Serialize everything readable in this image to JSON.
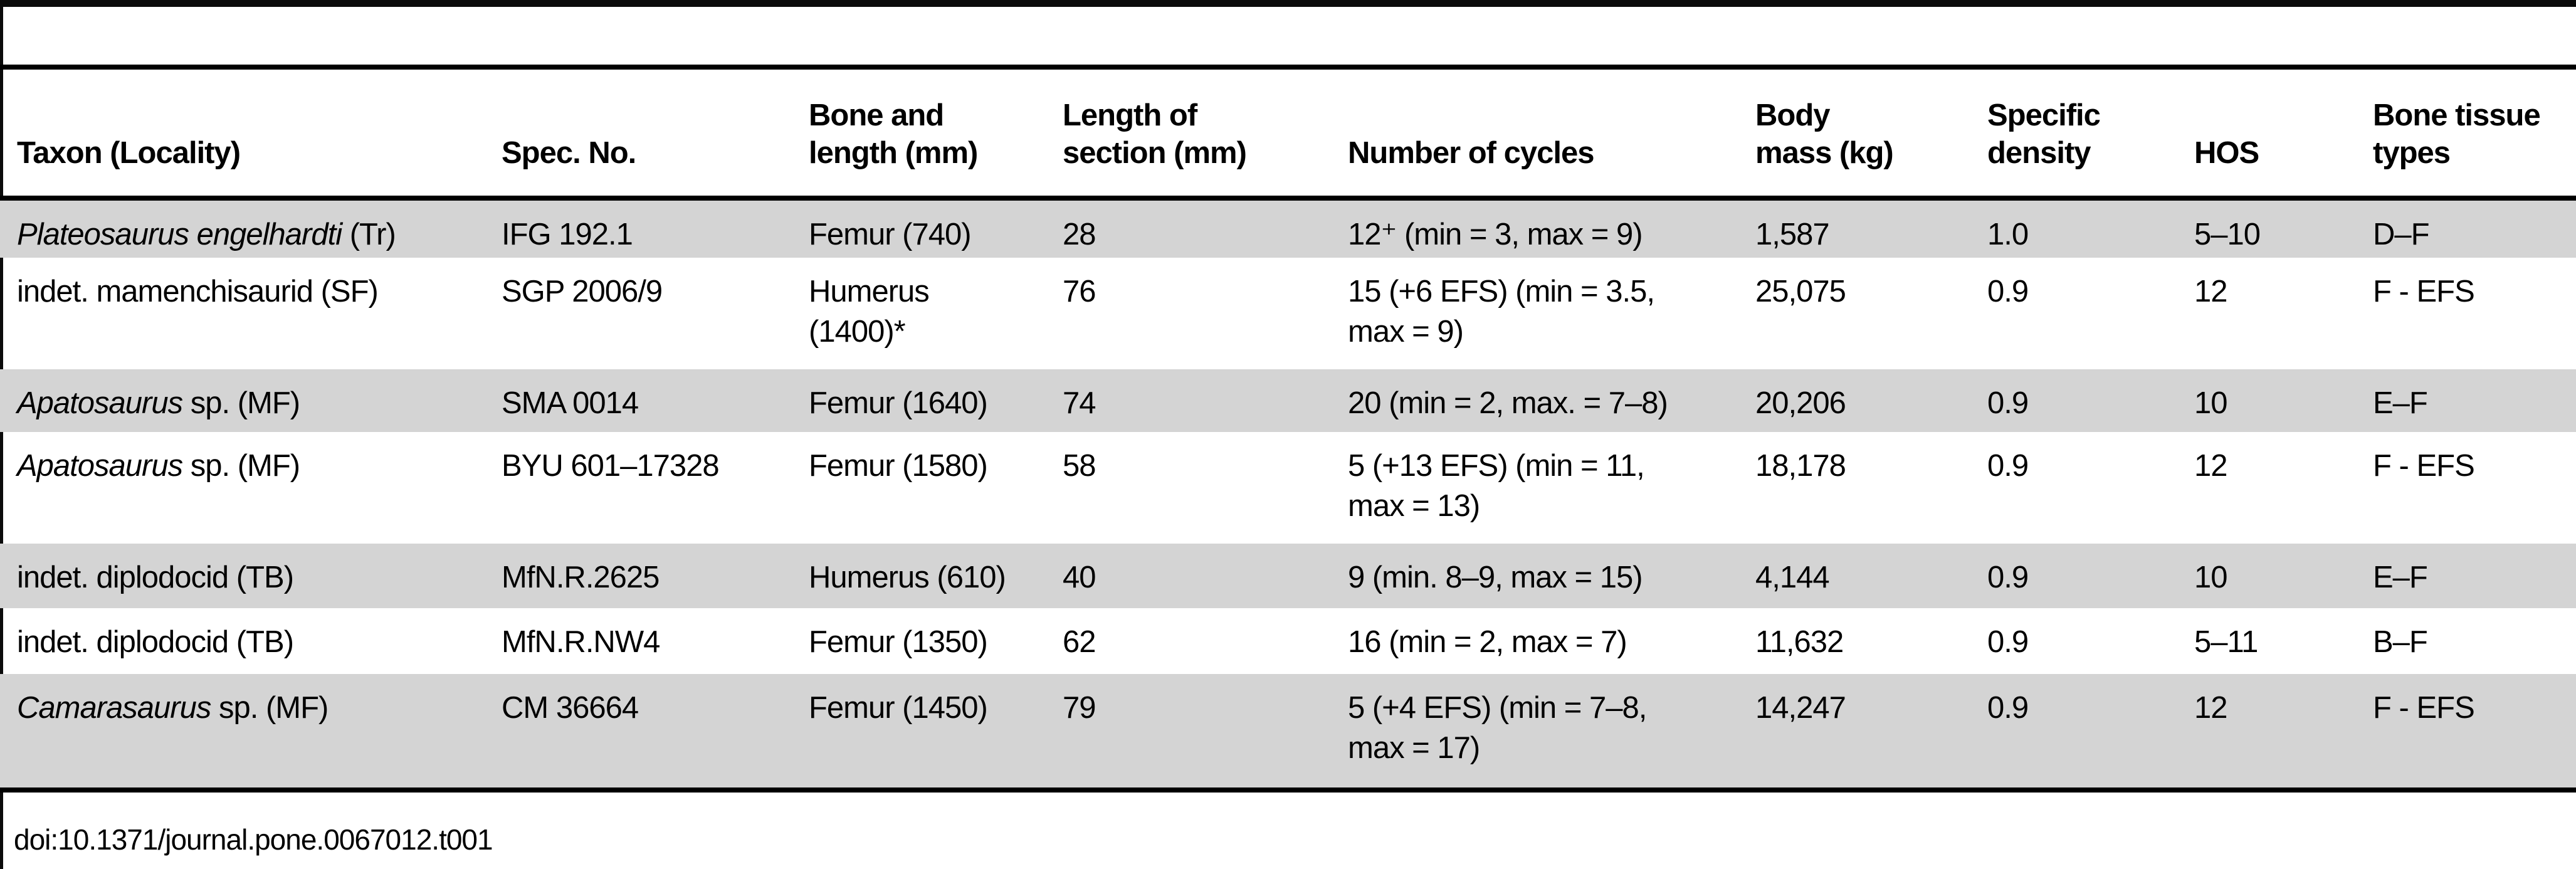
{
  "colors": {
    "stripe": "#d4d4d4",
    "rule": "#000000",
    "background": "#ffffff"
  },
  "table": {
    "columns": [
      "Taxon (Locality)",
      "Spec. No.",
      "Bone and\nlength (mm)",
      "Length of\nsection (mm)",
      "Number of cycles",
      "Body\nmass (kg)",
      "Specific\ndensity",
      "HOS",
      "Bone tissue\ntypes"
    ],
    "rows": [
      {
        "taxon_italic": "Plateosaurus engelhardti",
        "taxon_roman": " (Tr)",
        "spec_no": "IFG 192.1",
        "bone": "Femur (740)",
        "section": "28",
        "cycles": "12⁺ (min = 3, max = 9)",
        "body_mass": "1,587",
        "density": "1.0",
        "hos": "5–10",
        "tissue": "D–F"
      },
      {
        "taxon_italic": "",
        "taxon_roman": "indet. mamenchisaurid (SF)",
        "spec_no": "SGP 2006/9",
        "bone": "Humerus\n(1400)*",
        "section": "76",
        "cycles": "15 (+6 EFS) (min = 3.5,\nmax = 9)",
        "body_mass": "25,075",
        "density": "0.9",
        "hos": "12",
        "tissue": "F - EFS"
      },
      {
        "taxon_italic": "Apatosaurus",
        "taxon_roman": " sp. (MF)",
        "spec_no": "SMA 0014",
        "bone": "Femur (1640)",
        "section": "74",
        "cycles": "20 (min = 2, max. = 7–8)",
        "body_mass": "20,206",
        "density": "0.9",
        "hos": "10",
        "tissue": "E–F"
      },
      {
        "taxon_italic": "Apatosaurus",
        "taxon_roman": " sp. (MF)",
        "spec_no": "BYU 601–17328",
        "bone": "Femur (1580)",
        "section": "58",
        "cycles": "5 (+13 EFS) (min = 11,\nmax = 13)",
        "body_mass": "18,178",
        "density": "0.9",
        "hos": "12",
        "tissue": "F - EFS"
      },
      {
        "taxon_italic": "",
        "taxon_roman": "indet. diplodocid (TB)",
        "spec_no": "MfN.R.2625",
        "bone": "Humerus (610)",
        "section": "40",
        "cycles": "9 (min. 8–9, max = 15)",
        "body_mass": "4,144",
        "density": "0.9",
        "hos": "10",
        "tissue": "E–F"
      },
      {
        "taxon_italic": "",
        "taxon_roman": "indet. diplodocid (TB)",
        "spec_no": "MfN.R.NW4",
        "bone": "Femur (1350)",
        "section": "62",
        "cycles": "16 (min = 2, max = 7)",
        "body_mass": "11,632",
        "density": "0.9",
        "hos": "5–11",
        "tissue": "B–F"
      },
      {
        "taxon_italic": "Camarasaurus",
        "taxon_roman": " sp. (MF)",
        "spec_no": "CM 36664",
        "bone": "Femur (1450)",
        "section": "79",
        "cycles": "5 (+4 EFS) (min = 7–8,\nmax = 17)",
        "body_mass": "14,247",
        "density": "0.9",
        "hos": "12",
        "tissue": "F - EFS"
      }
    ]
  },
  "footer": {
    "doi": "doi:10.1371/journal.pone.0067012.t001"
  }
}
